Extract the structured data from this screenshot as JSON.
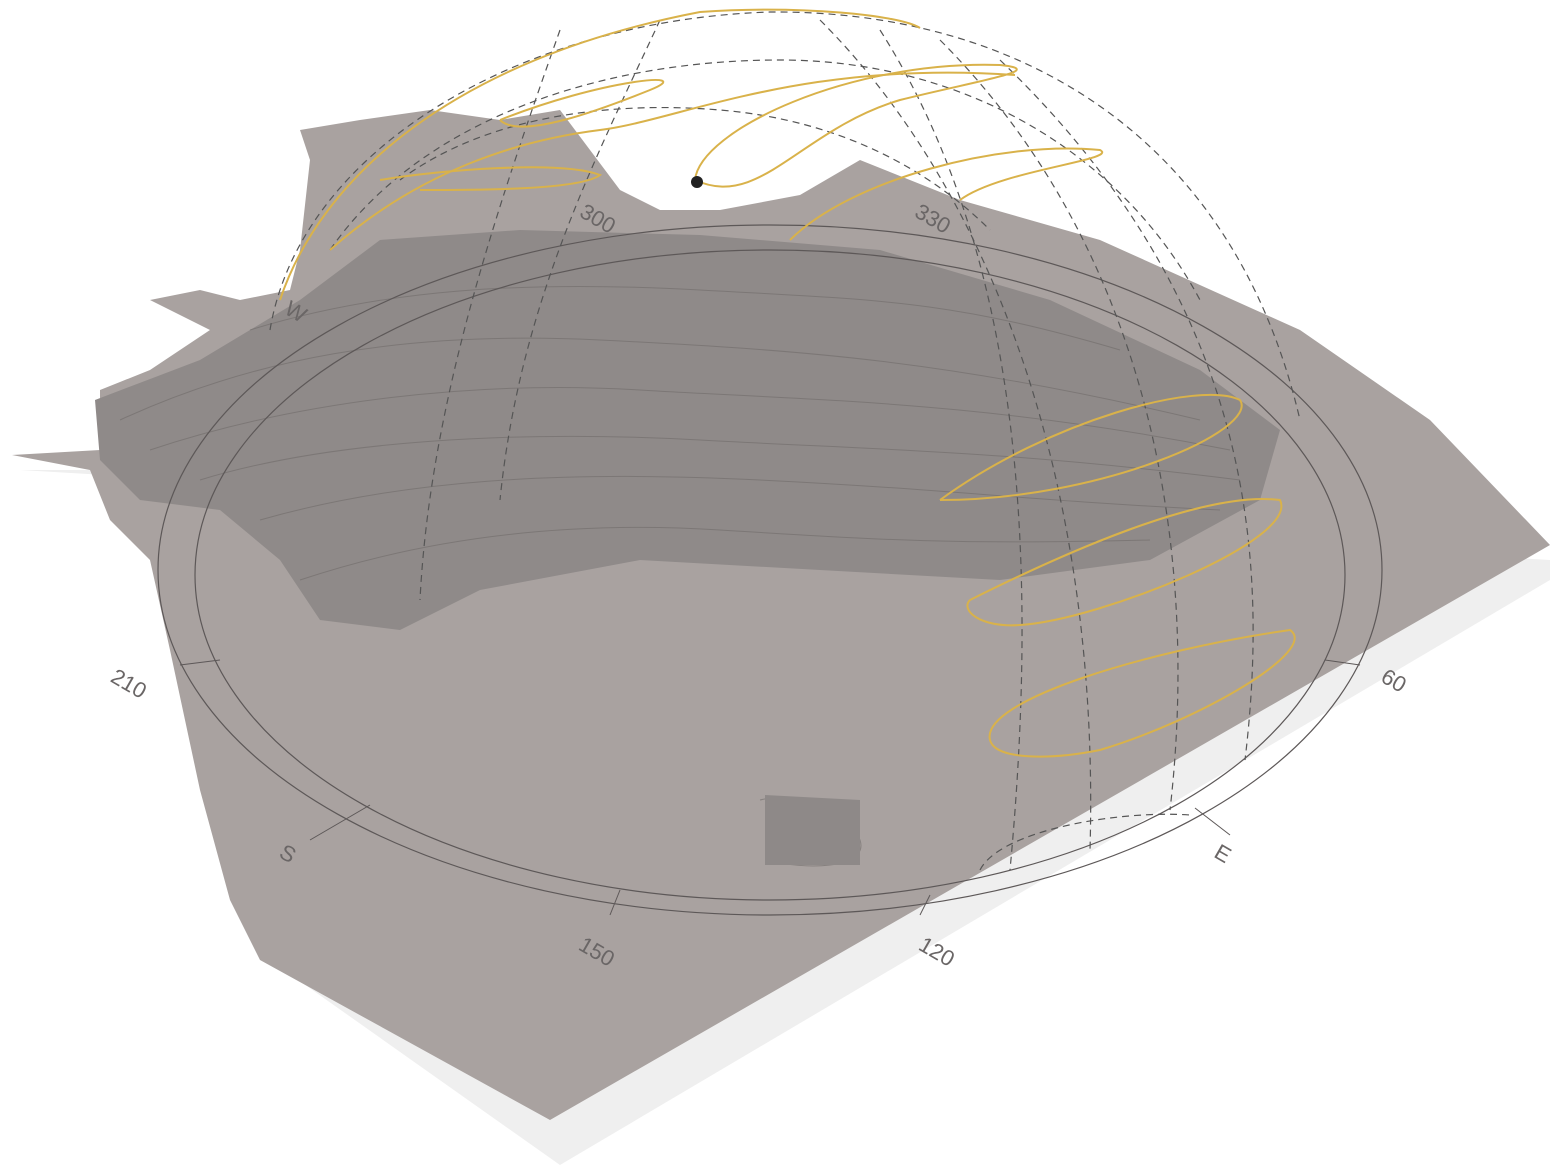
{
  "compass": {
    "directions": [
      "W",
      "S",
      "E"
    ],
    "azimuths": [
      "300",
      "330",
      "60",
      "210",
      "150",
      "120"
    ]
  }
}
